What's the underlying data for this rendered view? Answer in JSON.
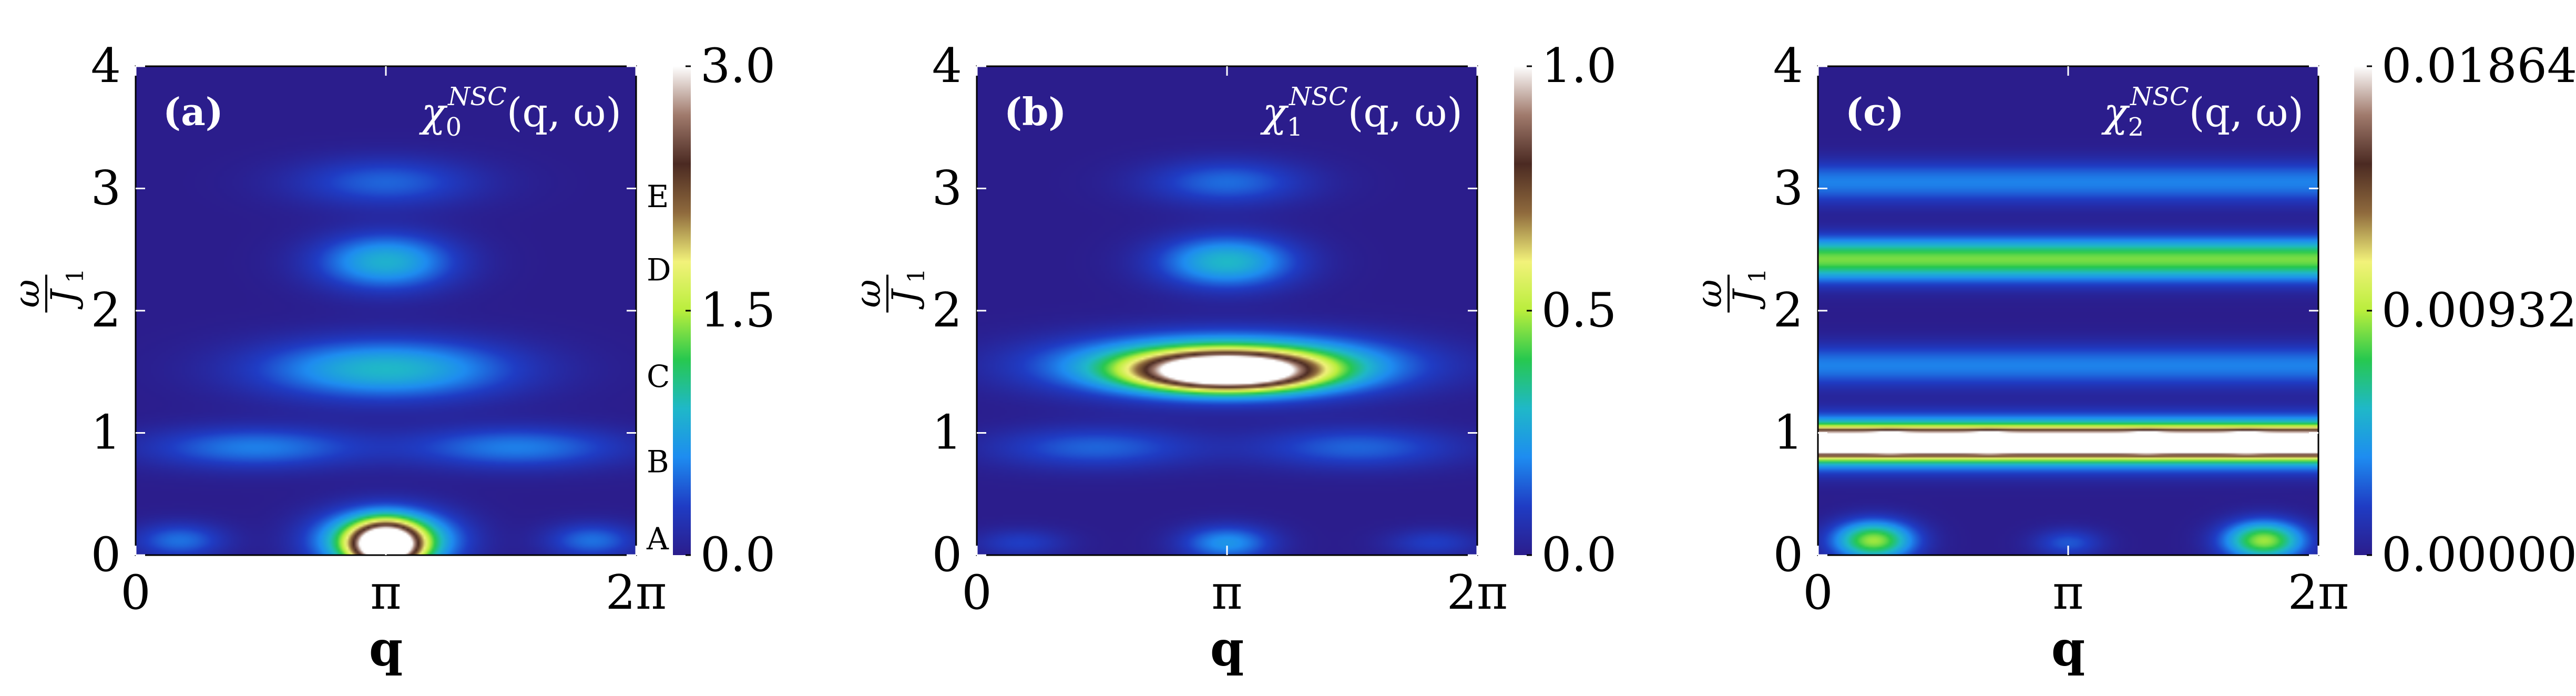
{
  "figure": {
    "panels": [
      {
        "id": "a",
        "panel_label": "(a)",
        "quantity_label": {
          "chi": "χ",
          "sub": "0",
          "sup": "NSC",
          "args": "(q, ω)"
        },
        "colorbar": {
          "ticks": [
            {
              "value": 0.0,
              "label": "0.0"
            },
            {
              "value": 1.5,
              "label": "1.5"
            },
            {
              "value": 3.0,
              "label": "3.0"
            }
          ],
          "range": [
            0.0,
            3.0
          ]
        },
        "band_markers": [
          {
            "letter": "A",
            "omega": 0.15
          },
          {
            "letter": "B",
            "omega": 0.78
          },
          {
            "letter": "C",
            "omega": 1.48
          },
          {
            "letter": "D",
            "omega": 2.35
          },
          {
            "letter": "E",
            "omega": 2.95
          }
        ]
      },
      {
        "id": "b",
        "panel_label": "(b)",
        "quantity_label": {
          "chi": "χ",
          "sub": "1",
          "sup": "NSC",
          "args": "(q, ω)"
        },
        "colorbar": {
          "ticks": [
            {
              "value": 0.0,
              "label": "0.0"
            },
            {
              "value": 0.5,
              "label": "0.5"
            },
            {
              "value": 1.0,
              "label": "1.0"
            }
          ],
          "range": [
            0.0,
            1.0
          ]
        },
        "band_markers": []
      },
      {
        "id": "c",
        "panel_label": "(c)",
        "quantity_label": {
          "chi": "χ",
          "sub": "2",
          "sup": "NSC",
          "args": "(q, ω)"
        },
        "colorbar": {
          "ticks": [
            {
              "value": 0.0,
              "label": "0.00000"
            },
            {
              "value": 0.00932,
              "label": "0.00932"
            },
            {
              "value": 0.01864,
              "label": "0.01864"
            }
          ],
          "range": [
            0.0,
            0.01864
          ]
        },
        "band_markers": []
      }
    ],
    "axes": {
      "x_label": "q",
      "y_label_num": "ω",
      "y_label_den": "J",
      "y_label_den_sub": "1",
      "x_ticks": [
        {
          "value": 0,
          "label": "0"
        },
        {
          "value": 3.14159,
          "label": "π"
        },
        {
          "value": 6.28318,
          "label": "2π"
        }
      ],
      "y_ticks": [
        {
          "value": 0,
          "label": "0"
        },
        {
          "value": 1,
          "label": "1"
        },
        {
          "value": 2,
          "label": "2"
        },
        {
          "value": 3,
          "label": "3"
        },
        {
          "value": 4,
          "label": "4"
        }
      ]
    },
    "colormap": [
      "#2b1d8c",
      "#1f3cc4",
      "#1e8cf0",
      "#1fb8c8",
      "#27c84f",
      "#b9ee3c",
      "#f2f27a",
      "#8f6a3d",
      "#4b2a22",
      "#a07a6c",
      "#ffffff"
    ]
  },
  "chart_data": [
    {
      "type": "heatmap",
      "title": "(a) χ0^NSC(q, ω)",
      "xlabel": "q",
      "ylabel": "ω/J1",
      "xlim": [
        0,
        6.28318
      ],
      "ylim": [
        0,
        4
      ],
      "color_range": [
        0.0,
        3.0
      ],
      "features": [
        {
          "q": 3.14159,
          "omega": 0.08,
          "value": 3.0,
          "width_q": 0.28,
          "width_omega": 0.12,
          "shape": "peak"
        },
        {
          "q": 3.14159,
          "omega": 0.12,
          "value": 1.8,
          "width_q": 0.55,
          "width_omega": 0.16,
          "shape": "peak"
        },
        {
          "q": 0.55,
          "omega": 0.12,
          "value": 0.5,
          "width_q": 0.4,
          "width_omega": 0.1,
          "shape": "peak"
        },
        {
          "q": 5.73,
          "omega": 0.12,
          "value": 0.5,
          "width_q": 0.4,
          "width_omega": 0.1,
          "shape": "peak"
        },
        {
          "q": 1.5,
          "omega": 0.88,
          "value": 0.55,
          "width_q": 0.95,
          "width_omega": 0.12,
          "shape": "peak"
        },
        {
          "q": 4.78,
          "omega": 0.88,
          "value": 0.55,
          "width_q": 0.95,
          "width_omega": 0.12,
          "shape": "peak"
        },
        {
          "q": 3.14159,
          "omega": 1.52,
          "value": 0.9,
          "width_q": 1.1,
          "width_omega": 0.17,
          "shape": "peak"
        },
        {
          "q": 3.14159,
          "omega": 2.4,
          "value": 0.85,
          "width_q": 0.6,
          "width_omega": 0.16,
          "shape": "peak"
        },
        {
          "q": 3.14159,
          "omega": 3.05,
          "value": 0.45,
          "width_q": 0.8,
          "width_omega": 0.14,
          "shape": "peak"
        }
      ]
    },
    {
      "type": "heatmap",
      "title": "(b) χ1^NSC(q, ω)",
      "xlabel": "q",
      "ylabel": "ω/J1",
      "xlim": [
        0,
        6.28318
      ],
      "ylim": [
        0,
        4
      ],
      "color_range": [
        0.0,
        1.0
      ],
      "features": [
        {
          "q": 3.14159,
          "omega": 1.5,
          "value": 1.0,
          "width_q": 0.72,
          "width_omega": 0.1,
          "shape": "peak"
        },
        {
          "q": 3.14159,
          "omega": 1.55,
          "value": 0.6,
          "width_q": 1.35,
          "width_omega": 0.16,
          "shape": "peak"
        },
        {
          "q": 3.14159,
          "omega": 2.4,
          "value": 0.3,
          "width_q": 0.6,
          "width_omega": 0.15,
          "shape": "peak"
        },
        {
          "q": 3.14159,
          "omega": 3.05,
          "value": 0.16,
          "width_q": 0.7,
          "width_omega": 0.13,
          "shape": "peak"
        },
        {
          "q": 1.5,
          "omega": 0.88,
          "value": 0.15,
          "width_q": 0.9,
          "width_omega": 0.12,
          "shape": "peak"
        },
        {
          "q": 4.78,
          "omega": 0.88,
          "value": 0.15,
          "width_q": 0.9,
          "width_omega": 0.12,
          "shape": "peak"
        },
        {
          "q": 3.14159,
          "omega": 0.1,
          "value": 0.22,
          "width_q": 0.4,
          "width_omega": 0.1,
          "shape": "peak"
        },
        {
          "q": 0.55,
          "omega": 0.1,
          "value": 0.1,
          "width_q": 0.4,
          "width_omega": 0.08,
          "shape": "peak"
        },
        {
          "q": 5.73,
          "omega": 0.1,
          "value": 0.1,
          "width_q": 0.4,
          "width_omega": 0.08,
          "shape": "peak"
        }
      ]
    },
    {
      "type": "heatmap",
      "title": "(c) χ2^NSC(q, ω)",
      "xlabel": "q",
      "ylabel": "ω/J1",
      "xlim": [
        0,
        6.28318
      ],
      "ylim": [
        0,
        4
      ],
      "color_range": [
        0.0,
        0.01864
      ],
      "features": [
        {
          "omega": 0.92,
          "value": 0.0175,
          "width_omega": 0.07,
          "shape": "band"
        },
        {
          "omega": 0.92,
          "value": 0.012,
          "width_omega": 0.13,
          "shape": "band"
        },
        {
          "q": 0.9,
          "omega": 0.92,
          "value": 0.0186,
          "width_q": 0.15,
          "width_omega": 0.04,
          "shape": "peak"
        },
        {
          "q": 2.15,
          "omega": 0.92,
          "value": 0.0186,
          "width_q": 0.15,
          "width_omega": 0.04,
          "shape": "peak"
        },
        {
          "q": 4.13,
          "omega": 0.92,
          "value": 0.0186,
          "width_q": 0.15,
          "width_omega": 0.04,
          "shape": "peak"
        },
        {
          "q": 5.38,
          "omega": 0.92,
          "value": 0.0186,
          "width_q": 0.15,
          "width_omega": 0.04,
          "shape": "peak"
        },
        {
          "omega": 2.42,
          "value": 0.0085,
          "width_omega": 0.12,
          "shape": "band"
        },
        {
          "omega": 1.55,
          "value": 0.0035,
          "width_omega": 0.12,
          "shape": "band"
        },
        {
          "omega": 3.05,
          "value": 0.0035,
          "width_omega": 0.12,
          "shape": "band"
        },
        {
          "q": 0.7,
          "omega": 0.12,
          "value": 0.009,
          "width_q": 0.35,
          "width_omega": 0.11,
          "shape": "peak"
        },
        {
          "q": 5.6,
          "omega": 0.12,
          "value": 0.009,
          "width_q": 0.35,
          "width_omega": 0.11,
          "shape": "peak"
        },
        {
          "q": 3.14159,
          "omega": 0.1,
          "value": 0.0025,
          "width_q": 0.3,
          "width_omega": 0.08,
          "shape": "peak"
        }
      ]
    }
  ]
}
